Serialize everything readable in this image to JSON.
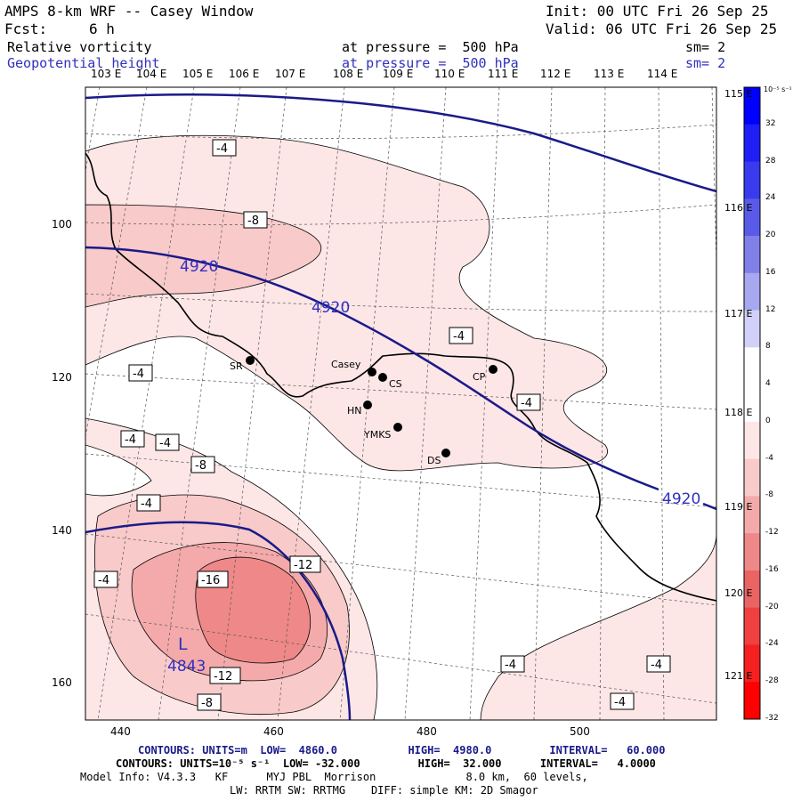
{
  "header": {
    "title": "AMPS 8-km WRF -- Casey Window",
    "init": "Init: 00 UTC Fri 26 Sep 25",
    "fcst_label": "Fcst:",
    "fcst_value": "6 h",
    "valid": "Valid: 06 UTC Fri 26 Sep 25",
    "field1": "Relative vorticity",
    "field1_pressure": "at pressure =  500 hPa",
    "field1_sm": "sm= 2",
    "field2": "Geopotential height",
    "field2_pressure": "at pressure =  500 hPa",
    "field2_sm": "sm= 2"
  },
  "longitude_labels": [
    "103 E",
    "104 E",
    "105 E",
    "106 E",
    "107 E",
    "108 E",
    "109 E",
    "110 E",
    "111 E",
    "112 E",
    "113 E",
    "114 E"
  ],
  "right_longitude_labels": [
    "115 E",
    "116 E",
    "117 E",
    "118 E",
    "119 E",
    "120 E",
    "121 E"
  ],
  "y_axis_labels": [
    "100",
    "120",
    "140",
    "160"
  ],
  "x_axis_labels": [
    "440",
    "460",
    "480",
    "500"
  ],
  "colorbar": {
    "unit": "10⁻⁵ s⁻¹",
    "labels": [
      "32",
      "28",
      "24",
      "20",
      "16",
      "12",
      "8",
      "4",
      "0",
      "-4",
      "-8",
      "-12",
      "-16",
      "-20",
      "-24",
      "-28",
      "-32"
    ],
    "colors": [
      "#0000ff",
      "#1f1ff5",
      "#3a3aee",
      "#5a5ae8",
      "#8080e8",
      "#a8a8f0",
      "#d0d0f8",
      "#ffffff",
      "#ffffff",
      "#fde6e6",
      "#f9caca",
      "#f4aaaa",
      "#ef8888",
      "#ea6464",
      "#f04040",
      "#f52020",
      "#ff0000"
    ]
  },
  "stations": [
    {
      "code": "SR"
    },
    {
      "code": "Casey"
    },
    {
      "code": "CS"
    },
    {
      "code": "CP"
    },
    {
      "code": "HN"
    },
    {
      "code": "YMKS"
    },
    {
      "code": "DS"
    }
  ],
  "vorticity_labels": [
    "-4",
    "-8",
    "-4",
    "-4",
    "-4",
    "-4",
    "-8",
    "-4",
    "-4",
    "-16",
    "-12",
    "-12",
    "-8",
    "-4",
    "-4",
    "-4"
  ],
  "height_labels": [
    "4920",
    "4920",
    "4920",
    "4843"
  ],
  "low_marker": "L",
  "footer": {
    "line1_label": "CONTOURS:",
    "line1_text": "UNITS=m  LOW=  4860.0           HIGH=  4980.0         INTERVAL=   60.000",
    "line2_label": "CONTOURS:",
    "line2_text": "UNITS=10⁻⁵ s⁻¹  LOW= -32.000         HIGH=  32.000      INTERVAL=   4.0000",
    "line3": "Model Info: V4.3.3   KF      MYJ PBL  Morrison              8.0 km,  60 levels,",
    "line4": "LW: RRTM SW: RRTMG    DIFF: simple KM: 2D Smagor"
  }
}
